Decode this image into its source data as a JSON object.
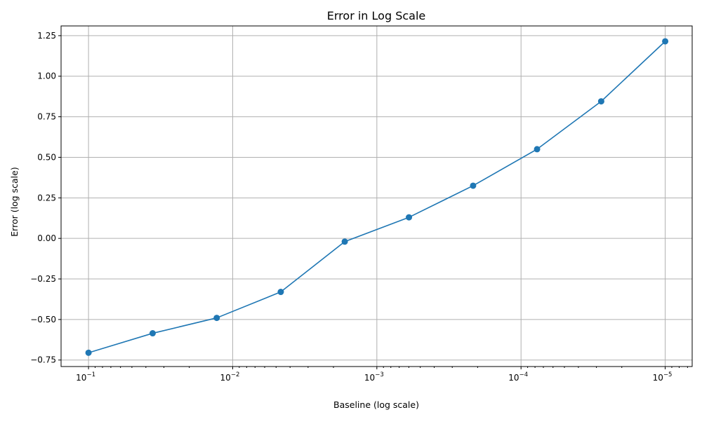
{
  "chart_data": {
    "type": "line",
    "title": "Error in Log Scale",
    "xlabel": "Baseline (log scale)",
    "ylabel": "Error (log scale)",
    "x_scale": "log",
    "x_reversed": true,
    "xlim": [
      0.155,
      6.5e-06
    ],
    "ylim": [
      -0.79,
      1.31
    ],
    "grid": true,
    "series": [
      {
        "color": "#1f77b4",
        "marker": "circle",
        "x": [
          0.1,
          0.0359,
          0.0129,
          0.00464,
          0.00167,
          0.000599,
          0.000215,
          7.74e-05,
          2.78e-05,
          1e-05
        ],
        "y": [
          -0.705,
          -0.585,
          -0.49,
          -0.33,
          -0.02,
          0.13,
          0.325,
          0.55,
          0.845,
          1.215
        ]
      }
    ],
    "x_ticks": [
      {
        "value": 0.1,
        "base": "10",
        "exp": "−1"
      },
      {
        "value": 0.01,
        "base": "10",
        "exp": "−2"
      },
      {
        "value": 0.001,
        "base": "10",
        "exp": "−3"
      },
      {
        "value": 0.0001,
        "base": "10",
        "exp": "−4"
      },
      {
        "value": 1e-05,
        "base": "10",
        "exp": "−5"
      }
    ],
    "y_ticks": [
      {
        "value": -0.75,
        "label": "−0.75"
      },
      {
        "value": -0.5,
        "label": "−0.50"
      },
      {
        "value": -0.25,
        "label": "−0.25"
      },
      {
        "value": 0.0,
        "label": "0.00"
      },
      {
        "value": 0.25,
        "label": "0.25"
      },
      {
        "value": 0.5,
        "label": "0.50"
      },
      {
        "value": 0.75,
        "label": "0.75"
      },
      {
        "value": 1.0,
        "label": "1.00"
      },
      {
        "value": 1.25,
        "label": "1.25"
      }
    ]
  }
}
